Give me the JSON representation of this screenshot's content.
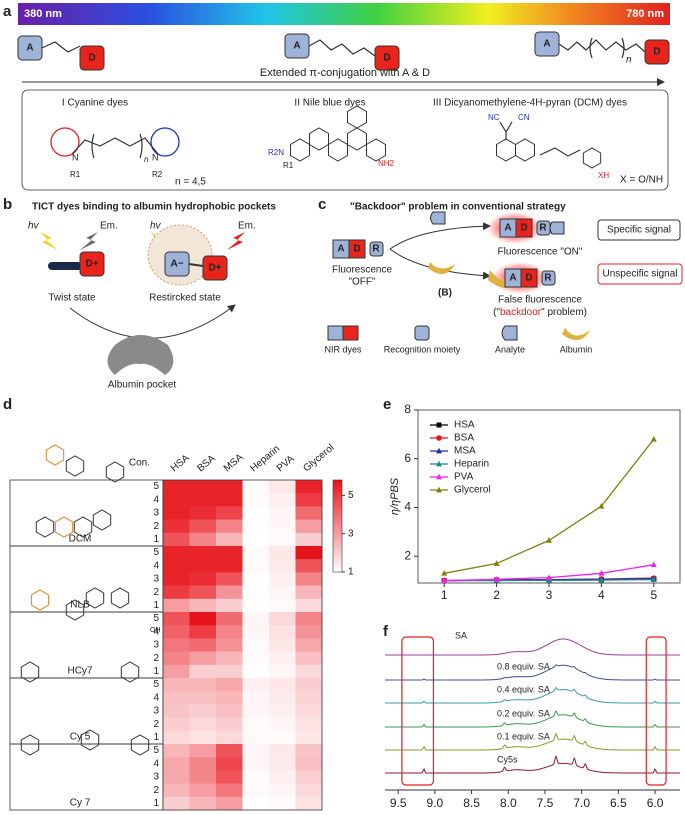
{
  "panel_a": {
    "label": "a",
    "wavelength_start": "380 nm",
    "wavelength_end": "780 nm",
    "acceptor": "A",
    "donor": "D",
    "repeat": "n",
    "arrow_text": "Extended π-conjugation with A & D",
    "cyanine": {
      "title": "I Cyanine dyes",
      "r1": "R1",
      "r2": "R2",
      "n_note": "n = 4,5"
    },
    "nile_blue": {
      "title": "II Nile blue dyes",
      "amine": "R2N",
      "r1": "R1",
      "nh2": "NH2"
    },
    "dcm": {
      "title": "III Dicyanomethylene-4H-pyran (DCM) dyes",
      "nc": "NC",
      "cn": "CN",
      "xh": "XH",
      "note": "X = O/NH"
    }
  },
  "panel_b": {
    "label": "b",
    "title": "TICT dyes binding to albumin hydrophobic pockets",
    "excitation": [
      "hv",
      "hv"
    ],
    "emission": [
      "Em.",
      "Em."
    ],
    "donor": "D+",
    "acceptor": "A−",
    "twist": "Twist state",
    "restricted": "Restircked state",
    "pocket": "Albumin pocket"
  },
  "panel_c": {
    "label": "c",
    "title": "\"Backdoor\" problem in conventional strategy",
    "dye_parts": [
      "A",
      "D",
      "R"
    ],
    "off_label": [
      "Fluorescence",
      "\"OFF\""
    ],
    "on_label": "Fluorescence \"ON\"",
    "specific": "Specific signal",
    "false_label": [
      "False fluorescence",
      "(\"",
      "backdoor",
      "\" problem)"
    ],
    "b_label": "(B)",
    "unspecific": "Unspecific signal",
    "legend": [
      "NIR dyes",
      "Recognition moiety",
      "Analyte",
      "Albumin"
    ]
  },
  "panel_d": {
    "label": "d",
    "oh": "OH"
  },
  "panel_e": {
    "label": "e"
  },
  "chart_data": [
    {
      "type": "heatmap",
      "columns": [
        "HSA",
        "BSA",
        "MSA",
        "Heparin",
        "PVA",
        "Glycerol"
      ],
      "row_title": "Con.",
      "row_labels": [
        "5",
        "4",
        "3",
        "2",
        "1"
      ],
      "clim": [
        1,
        5.8
      ],
      "cticks": [
        1,
        3,
        5
      ],
      "colors": [
        "#ffffff",
        "#e8141c"
      ],
      "blocks": [
        {
          "name": "DCM",
          "values": [
            [
              5.5,
              5.5,
              5.5,
              1.1,
              1.5,
              5.5
            ],
            [
              5.5,
              5.5,
              5.5,
              1.1,
              1.3,
              5
            ],
            [
              5.5,
              5.3,
              4.8,
              1.05,
              1.2,
              4
            ],
            [
              5.2,
              4.5,
              3.5,
              1.05,
              1.15,
              3
            ],
            [
              4.5,
              3.5,
              2.5,
              1,
              1.1,
              2
            ]
          ]
        },
        {
          "name": "NLB",
          "values": [
            [
              5.5,
              5.5,
              5.5,
              1.1,
              1.5,
              5.8
            ],
            [
              5.5,
              5.5,
              5.5,
              1.1,
              1.4,
              4.5
            ],
            [
              5.5,
              5.3,
              4.5,
              1.05,
              1.3,
              3.5
            ],
            [
              5,
              4.5,
              3.2,
              1.05,
              1.2,
              2.5
            ],
            [
              3,
              2.5,
              2,
              1,
              1.1,
              1.8
            ]
          ]
        },
        {
          "name": "HCy7",
          "values": [
            [
              4.5,
              5.8,
              4,
              1.2,
              1.8,
              3.5
            ],
            [
              4.2,
              5,
              3.5,
              1.2,
              1.6,
              3.2
            ],
            [
              3.8,
              4,
              3.2,
              1.1,
              1.5,
              2.8
            ],
            [
              3.5,
              3,
              2.5,
              1.1,
              1.3,
              2.3
            ],
            [
              3,
              2,
              2,
              1,
              1.2,
              1.8
            ]
          ]
        },
        {
          "name": "Cy 5",
          "values": [
            [
              2.5,
              2.5,
              2.8,
              1.3,
              1.5,
              2
            ],
            [
              2.3,
              2.3,
              2.5,
              1.2,
              1.4,
              1.9
            ],
            [
              2.2,
              2,
              2.3,
              1.2,
              1.3,
              1.8
            ],
            [
              2,
              1.8,
              2,
              1.1,
              1.2,
              1.6
            ],
            [
              1.8,
              1.6,
              1.8,
              1.1,
              1.1,
              1.5
            ]
          ]
        },
        {
          "name": "Cy 7",
          "values": [
            [
              2.5,
              3,
              4.5,
              1.2,
              1.5,
              2.2
            ],
            [
              2.8,
              3.5,
              4.8,
              1.2,
              1.4,
              2.3
            ],
            [
              2.8,
              3.5,
              4.5,
              1.1,
              1.3,
              2
            ],
            [
              2.5,
              3,
              3.8,
              1.1,
              1.2,
              1.8
            ],
            [
              2,
              2.5,
              3,
              1,
              1.1,
              1.6
            ]
          ]
        }
      ]
    },
    {
      "type": "line",
      "x": [
        1,
        2,
        3,
        4,
        5
      ],
      "xlim": [
        0.5,
        5.5
      ],
      "xticks": [
        1,
        2,
        3,
        4,
        5
      ],
      "ylim": [
        0.9,
        8
      ],
      "yticks": [
        2,
        4,
        6,
        8
      ],
      "ylabel": "η/ηPBS",
      "legend": "upper left",
      "series": [
        {
          "name": "HSA",
          "color": "#000000",
          "marker": "square",
          "values": [
            1.0,
            1.02,
            1.03,
            1.05,
            1.08
          ]
        },
        {
          "name": "BSA",
          "color": "#e8141c",
          "marker": "circle",
          "values": [
            1.0,
            1.03,
            1.04,
            1.06,
            1.1
          ]
        },
        {
          "name": "MSA",
          "color": "#1f2fb0",
          "marker": "triangle",
          "values": [
            1.0,
            1.02,
            1.03,
            1.05,
            1.08
          ]
        },
        {
          "name": "Heparin",
          "color": "#1a8a8a",
          "marker": "triangle",
          "values": [
            1.0,
            1.0,
            1.01,
            1.02,
            1.04
          ]
        },
        {
          "name": "PVA",
          "color": "#ee22ee",
          "marker": "triangle",
          "values": [
            1.0,
            1.05,
            1.12,
            1.3,
            1.65
          ]
        },
        {
          "name": "Glycerol",
          "color": "#808010",
          "marker": "triangle",
          "values": [
            1.3,
            1.7,
            2.65,
            4.05,
            6.8
          ]
        }
      ]
    }
  ],
  "panel_f": {
    "label": "f",
    "xlim": [
      9.68,
      5.66
    ],
    "xticks": [
      9.5,
      {
        "value": 9,
        "label": "9.0"
      },
      8.5,
      {
        "value": 8,
        "label": "8.0"
      },
      7.5,
      {
        "value": 7,
        "label": "7.0"
      },
      6.5,
      {
        "value": 6,
        "label": "6.0"
      }
    ],
    "traces": [
      {
        "name": "SA",
        "color": "#9b3d9b"
      },
      {
        "name": "0.8 equiv. SA",
        "color": "#3b4f8f"
      },
      {
        "name": "0.4 equiv. SA",
        "color": "#3a9aa8"
      },
      {
        "name": "0.2 equiv. SA",
        "color": "#3a9a4a"
      },
      {
        "name": "0.1 equiv. SA",
        "color": "#8a9a2a"
      },
      {
        "name": "Cy5s",
        "color": "#8b1a2a"
      }
    ]
  }
}
